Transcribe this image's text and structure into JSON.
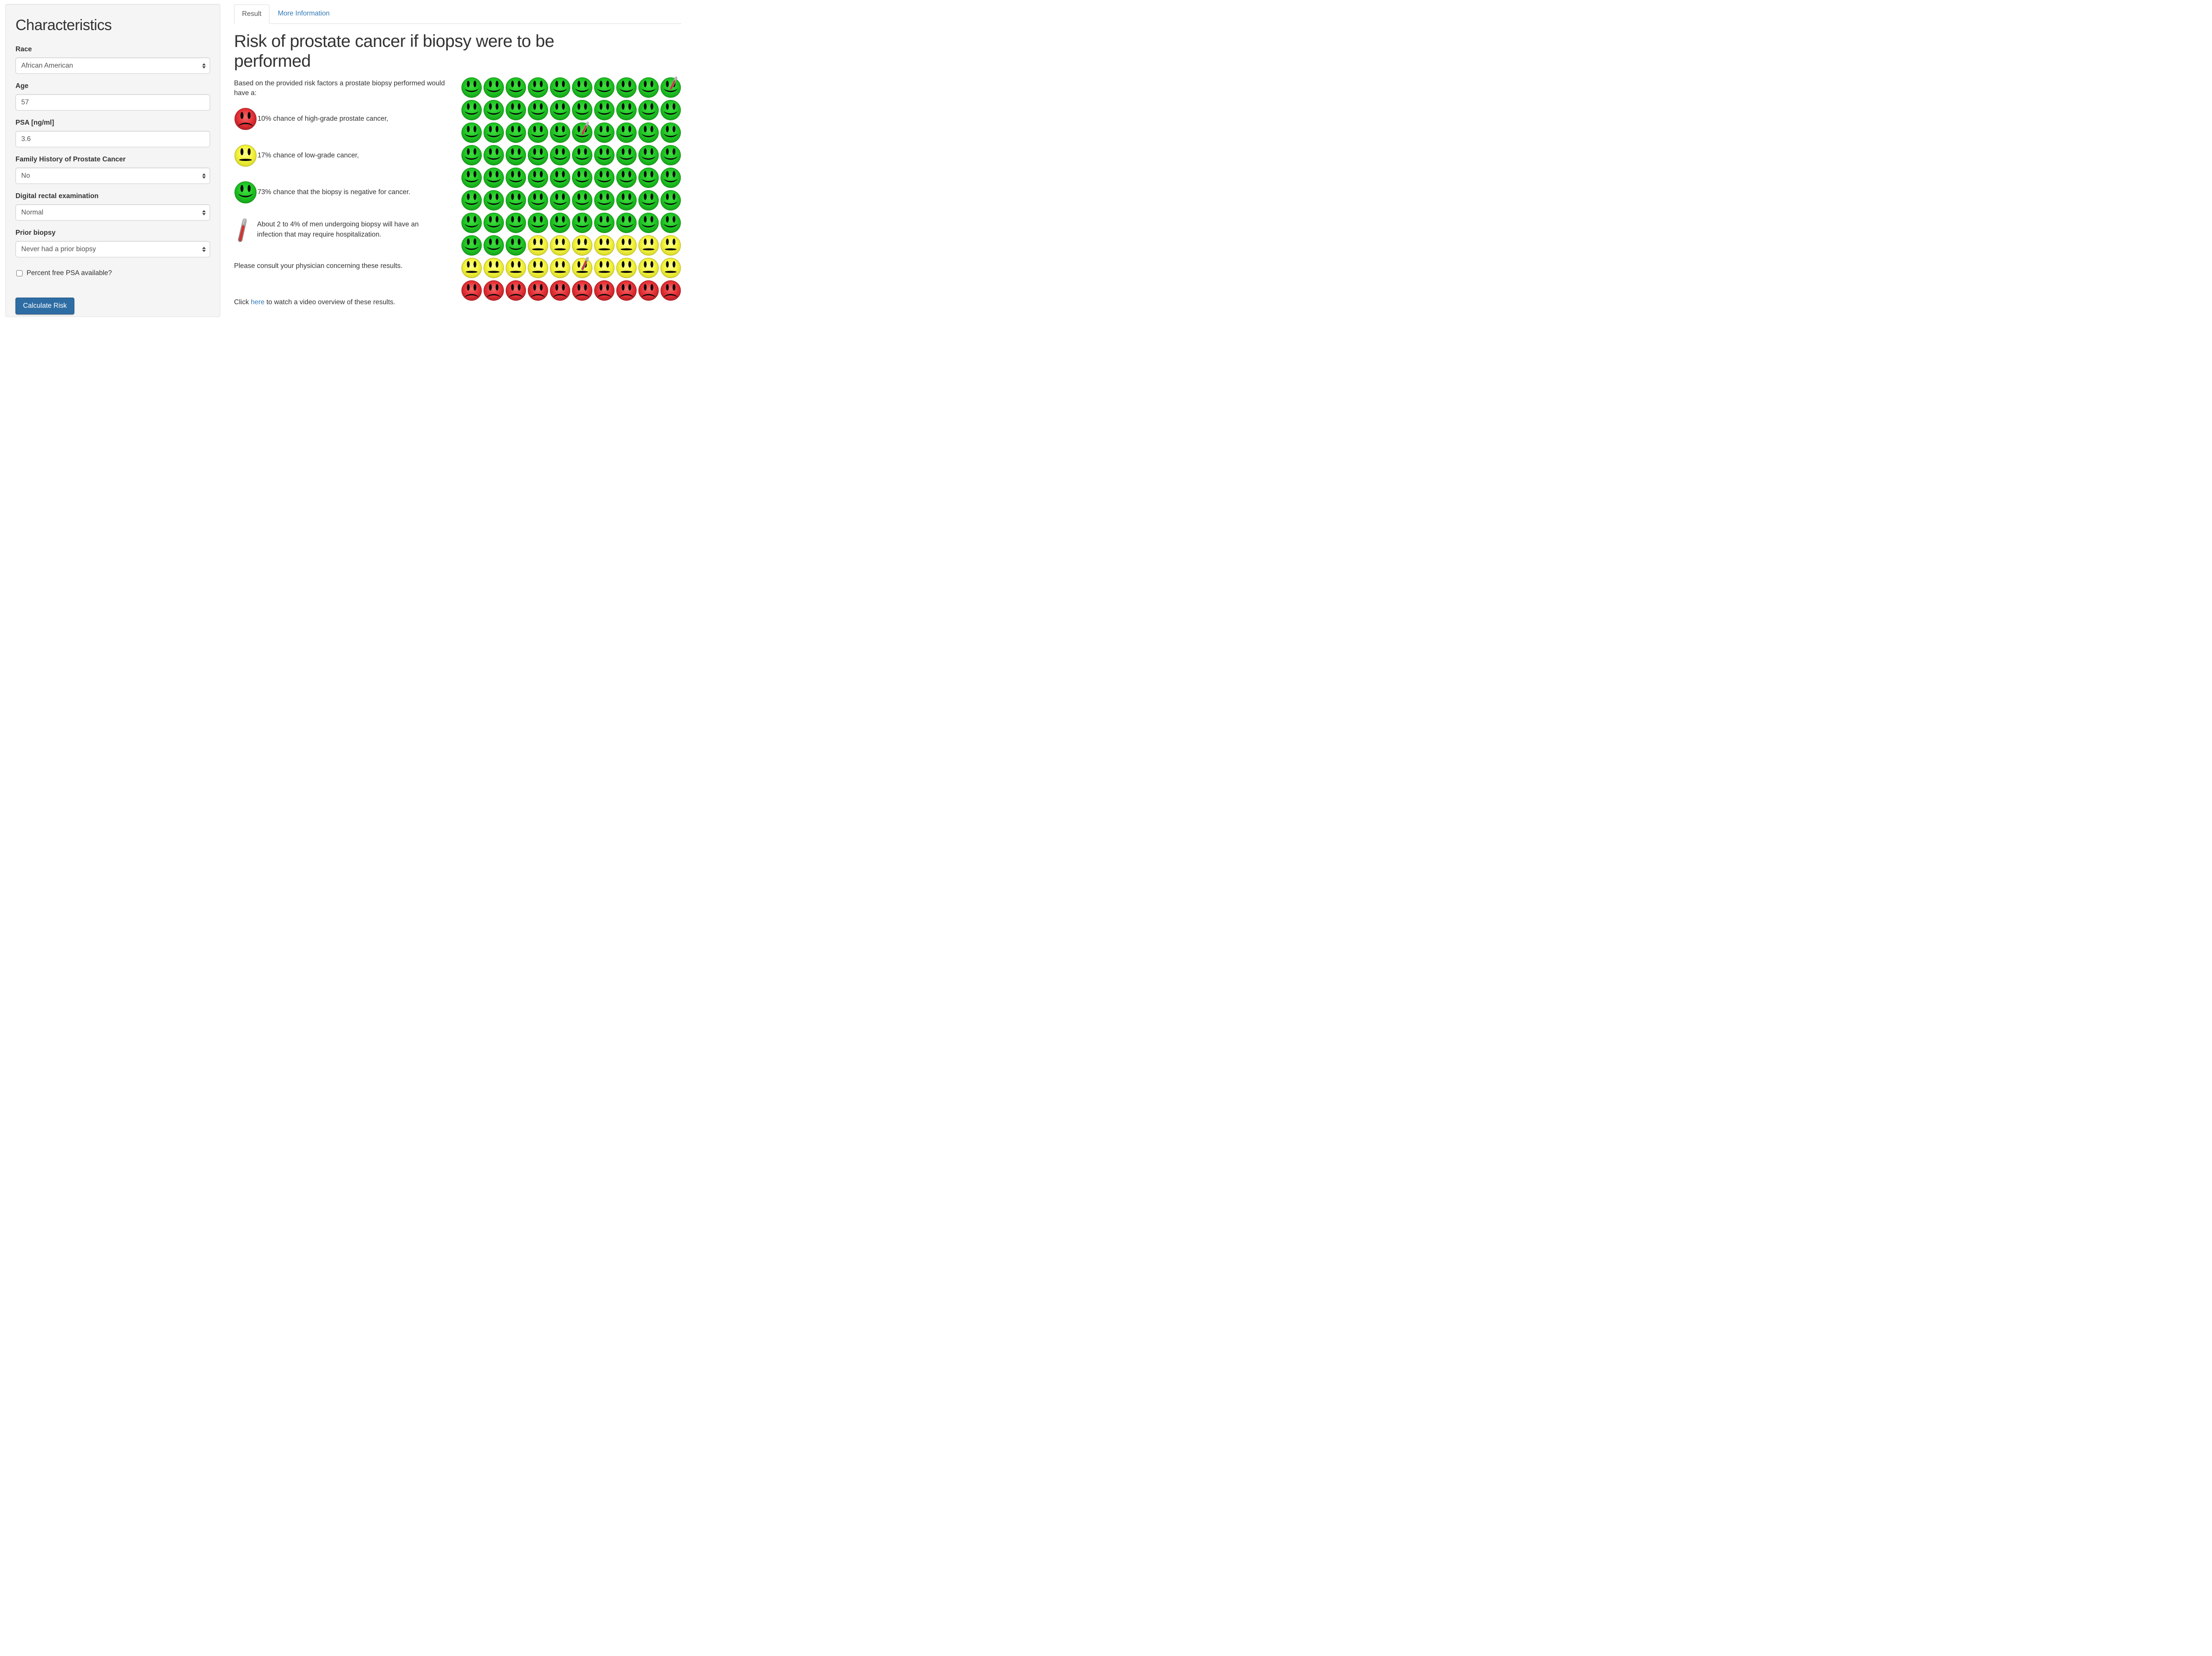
{
  "colors": {
    "accent_link": "#337ab7",
    "button_bg": "#2e6da4",
    "panel_bg": "#f5f5f5",
    "face_green": "#1fc723",
    "face_yellow": "#f4f43c",
    "face_red": "#e73238",
    "thermometer_red": "#d9302c",
    "thermometer_gray": "#9a9a9a"
  },
  "panel": {
    "title": "Characteristics",
    "fields": [
      {
        "label": "Race",
        "value": "African American",
        "control": "select"
      },
      {
        "label": "Age",
        "value": "57",
        "control": "input"
      },
      {
        "label": "PSA [ng/ml]",
        "value": "3.6",
        "control": "input"
      },
      {
        "label": "Family History of Prostate Cancer",
        "value": "No",
        "control": "select"
      },
      {
        "label": "Digital rectal examination",
        "value": "Normal",
        "control": "select"
      },
      {
        "label": "Prior biopsy",
        "value": "Never had a prior biopsy",
        "control": "select"
      }
    ],
    "checkbox": {
      "label": "Percent free PSA available?",
      "checked": false
    },
    "button_label": "Calculate Risk"
  },
  "tabs": [
    {
      "label": "Result",
      "active": true
    },
    {
      "label": "More Information",
      "active": false
    }
  ],
  "result": {
    "heading": "Risk of prostate cancer if biopsy were to be performed",
    "intro": "Based on the provided risk factors a prostate biopsy performed would have a:",
    "bullets": [
      {
        "icon": "sad-red-face",
        "percent": 10,
        "text": "10% chance of high-grade prostate cancer,"
      },
      {
        "icon": "neutral-yellow-face",
        "percent": 17,
        "text": "17% chance of low-grade cancer,"
      },
      {
        "icon": "happy-green-face",
        "percent": 73,
        "text": "73% chance that the biopsy is negative for cancer."
      }
    ],
    "infection_note": "About 2 to 4% of men undergoing biopsy will have an infection that may require hospitalization.",
    "consult_note": "Please consult your physician concerning these results.",
    "video_line": {
      "prefix": "Click ",
      "link_text": "here",
      "suffix": " to watch a video overview of these results."
    }
  },
  "grid": {
    "rows": 10,
    "cols": 10,
    "counts": {
      "green": 73,
      "yellow": 17,
      "red": 10
    },
    "thermometer_cell_numbers": [
      10,
      26,
      86
    ]
  }
}
